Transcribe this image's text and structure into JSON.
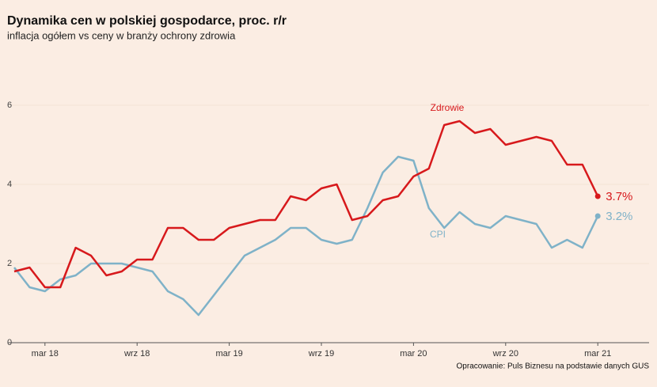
{
  "chart_data": {
    "type": "line",
    "title": "Dynamika cen w polskiej gospodarce, proc. r/r",
    "subtitle": "inflacja ogółem vs ceny w branży ochrony zdrowia",
    "source": "Opracowanie: Puls Biznesu na podstawie danych GUS",
    "categories": [
      null,
      null,
      "mar 18",
      null,
      null,
      null,
      null,
      null,
      "wrz 18",
      null,
      null,
      null,
      null,
      null,
      "mar 19",
      null,
      null,
      null,
      null,
      null,
      "wrz 19",
      null,
      null,
      null,
      null,
      null,
      "mar 20",
      null,
      null,
      null,
      null,
      null,
      "wrz 20",
      null,
      null,
      null,
      null,
      null,
      "mar 21"
    ],
    "series": [
      {
        "name": "Zdrowie",
        "color": "#d7191c",
        "values": [
          1.8,
          1.9,
          1.4,
          1.4,
          2.4,
          2.2,
          1.7,
          1.8,
          2.1,
          2.1,
          2.9,
          2.9,
          2.6,
          2.6,
          2.9,
          3.0,
          3.1,
          3.1,
          3.7,
          3.6,
          3.9,
          4.0,
          3.1,
          3.2,
          3.6,
          3.7,
          4.2,
          4.4,
          5.5,
          5.6,
          5.3,
          5.4,
          5.0,
          5.1,
          5.2,
          5.1,
          4.5,
          4.5,
          3.7
        ],
        "value_labels": [
          null,
          null,
          null,
          null,
          null,
          null,
          null,
          null,
          null,
          null,
          null,
          null,
          null,
          null,
          null,
          null,
          null,
          null,
          null,
          null,
          null,
          null,
          null,
          null,
          null,
          null,
          null,
          null,
          null,
          null,
          null,
          null,
          null,
          null,
          null,
          null,
          null,
          null,
          "3.7%"
        ]
      },
      {
        "name": "CPI",
        "color": "#7fb2c8",
        "values": [
          1.9,
          1.4,
          1.3,
          1.6,
          1.7,
          2.0,
          2.0,
          2.0,
          1.9,
          1.8,
          1.3,
          1.1,
          0.7,
          1.2,
          1.7,
          2.2,
          2.4,
          2.6,
          2.9,
          2.9,
          2.6,
          2.5,
          2.6,
          3.4,
          4.3,
          4.7,
          4.6,
          3.4,
          2.9,
          3.3,
          3.0,
          2.9,
          3.2,
          3.1,
          3.0,
          2.4,
          2.6,
          2.4,
          3.2
        ],
        "value_labels": [
          null,
          null,
          null,
          null,
          null,
          null,
          null,
          null,
          null,
          null,
          null,
          null,
          null,
          null,
          null,
          null,
          null,
          null,
          null,
          null,
          null,
          null,
          null,
          null,
          null,
          null,
          null,
          null,
          null,
          null,
          null,
          null,
          null,
          null,
          null,
          null,
          null,
          null,
          "3.2%"
        ]
      }
    ],
    "ylim": [
      0,
      7.5
    ],
    "yticks": [
      0,
      2,
      4,
      6
    ],
    "grid": true
  }
}
